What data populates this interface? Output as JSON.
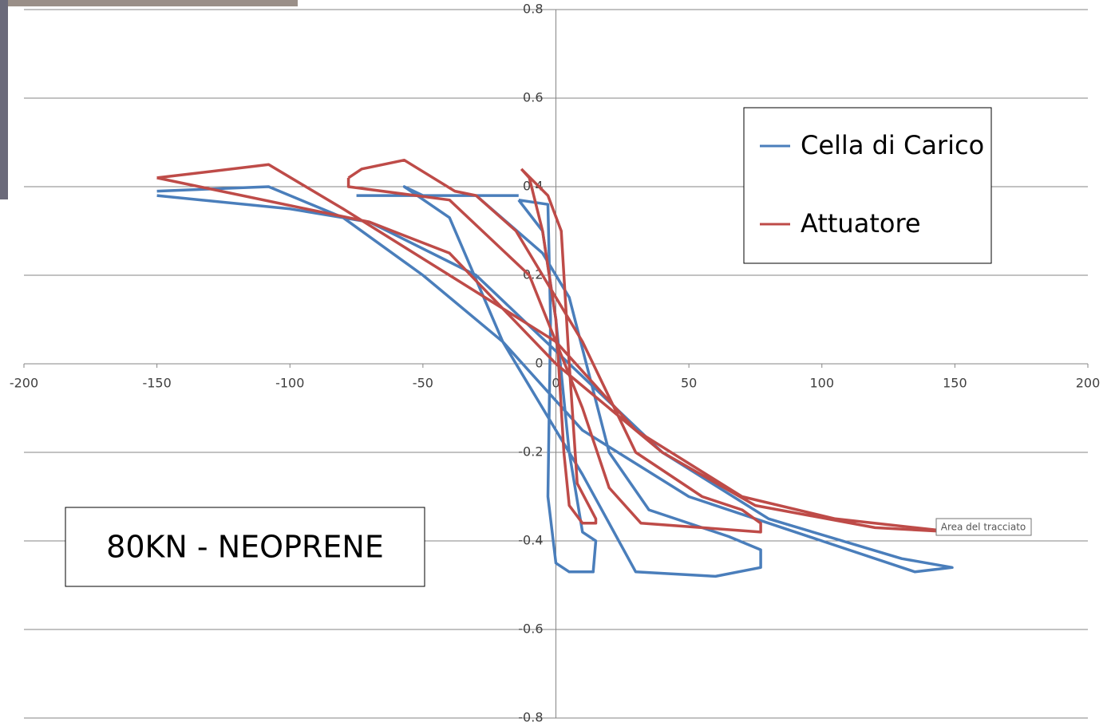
{
  "chart_data": {
    "type": "line",
    "xlim": [
      -200,
      200
    ],
    "ylim": [
      -0.8,
      0.8
    ],
    "xticks": [
      -200,
      -150,
      -100,
      -50,
      0,
      50,
      100,
      150,
      200
    ],
    "yticks": [
      -0.8,
      -0.6,
      -0.4,
      -0.2,
      0,
      0.2,
      0.4,
      0.6,
      0.8
    ],
    "grid": true,
    "legend": "upper right",
    "annotation": "80KN - NEOPRENE",
    "tooltip": "Area del tracciato",
    "series": [
      {
        "name": "Cella di Carico",
        "color": "#4a7ebb",
        "x": [
          -14,
          -3,
          -2,
          -3,
          0,
          5,
          14,
          15,
          10,
          5,
          0,
          -5,
          -14,
          null,
          -14,
          -50,
          -57,
          -40,
          -20,
          -10,
          10,
          30,
          60,
          77,
          77,
          65,
          35,
          20,
          5,
          -5,
          -30,
          -75,
          null,
          -150,
          -108,
          -80,
          -50,
          -20,
          10,
          50,
          100,
          135,
          149,
          130,
          80,
          40,
          5,
          -30,
          -70,
          -100,
          -150
        ],
        "values": [
          0.37,
          0.36,
          0.1,
          -0.3,
          -0.45,
          -0.47,
          -0.47,
          -0.4,
          -0.38,
          -0.2,
          0.1,
          0.3,
          0.37,
          null,
          0.38,
          0.38,
          0.4,
          0.33,
          0.05,
          -0.05,
          -0.25,
          -0.47,
          -0.48,
          -0.46,
          -0.42,
          -0.39,
          -0.33,
          -0.2,
          0.15,
          0.25,
          0.38,
          0.38,
          null,
          0.39,
          0.4,
          0.33,
          0.2,
          0.05,
          -0.15,
          -0.3,
          -0.4,
          -0.47,
          -0.46,
          -0.44,
          -0.35,
          -0.2,
          0,
          0.2,
          0.32,
          0.35,
          0.38
        ]
      },
      {
        "name": "Attuatore",
        "color": "#be4b48",
        "x": [
          -13,
          -10,
          -5,
          0,
          3,
          5,
          10,
          15,
          15,
          8,
          5,
          2,
          -3,
          -13,
          null,
          -78,
          -73,
          -57,
          -38,
          -30,
          -15,
          10,
          30,
          55,
          70,
          77,
          77,
          55,
          32,
          20,
          10,
          -10,
          -40,
          -78,
          -78,
          null,
          -150,
          -108,
          -80,
          -40,
          0,
          30,
          70,
          105,
          135,
          150,
          120,
          75,
          40,
          0,
          -40,
          -70,
          -150
        ],
        "values": [
          0.44,
          0.42,
          0.3,
          0.1,
          -0.2,
          -0.32,
          -0.36,
          -0.36,
          -0.35,
          -0.27,
          0,
          0.3,
          0.38,
          0.44,
          null,
          0.42,
          0.44,
          0.46,
          0.39,
          0.38,
          0.3,
          0.05,
          -0.2,
          -0.3,
          -0.33,
          -0.36,
          -0.38,
          -0.37,
          -0.36,
          -0.28,
          -0.1,
          0.2,
          0.37,
          0.4,
          0.42,
          null,
          0.42,
          0.45,
          0.35,
          0.2,
          0.05,
          -0.15,
          -0.3,
          -0.35,
          -0.37,
          -0.38,
          -0.37,
          -0.32,
          -0.2,
          0,
          0.25,
          0.32,
          0.42
        ]
      }
    ]
  }
}
